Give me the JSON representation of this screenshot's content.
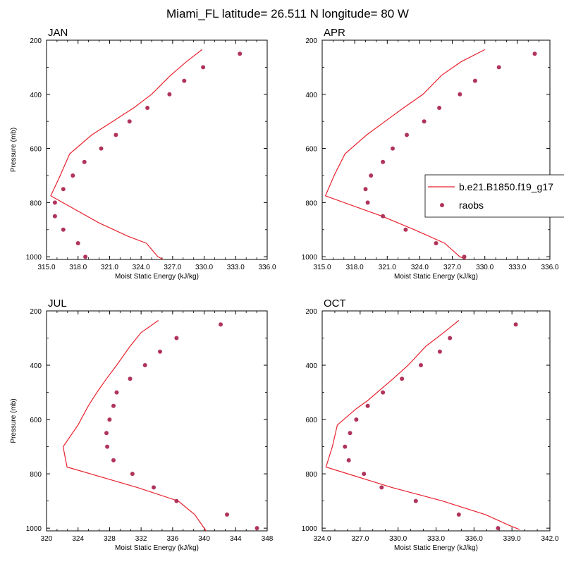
{
  "title": "Miami_FL  latitude= 26.511 N longitude= 80 W",
  "legend": {
    "model_label": "b.e21.B1850.f19_g17",
    "obs_label": "raobs"
  },
  "colors": {
    "model_line": "#e8212e",
    "obs_marker": "#b0345a",
    "axis": "#000000",
    "background": "#ffffff"
  },
  "chart_data": [
    {
      "type": "line+scatter",
      "panel": "JAN",
      "xlabel": "Moist Static Energy (kJ/kg)",
      "ylabel": "Pressure (mb)",
      "xlim": [
        315,
        336
      ],
      "ylim": [
        1010,
        200
      ],
      "xticks": [
        315,
        318,
        321,
        324,
        327,
        330,
        333,
        336
      ],
      "xtick_labels": [
        "315.0",
        "318.0",
        "321.0",
        "324.0",
        "327.0",
        "330.0",
        "333.0",
        "336.0"
      ],
      "yticks": [
        200,
        400,
        600,
        800,
        1000
      ],
      "ytick_labels": [
        "200",
        "400",
        "600",
        "800",
        "1000"
      ],
      "model": {
        "pressure": [
          235,
          280,
          330,
          400,
          450,
          500,
          550,
          620,
          700,
          775,
          875,
          925,
          950,
          1000,
          1020
        ],
        "mse": [
          329.8,
          328.3,
          326.8,
          325.0,
          323.3,
          321.3,
          319.3,
          317.2,
          316.3,
          315.4,
          320.0,
          322.8,
          324.5,
          325.6,
          326.6
        ]
      },
      "obs": {
        "pressure": [
          250,
          300,
          350,
          400,
          450,
          500,
          550,
          600,
          650,
          700,
          750,
          800,
          850,
          900,
          950,
          1000
        ],
        "mse": [
          333.4,
          329.9,
          328.1,
          326.7,
          324.6,
          322.9,
          321.6,
          320.2,
          318.6,
          317.5,
          316.6,
          315.8,
          315.8,
          316.6,
          318.0,
          318.7
        ]
      }
    },
    {
      "type": "line+scatter",
      "panel": "APR",
      "xlabel": "Moist Static Energy (kJ/kg)",
      "ylabel": "",
      "xlim": [
        315,
        336
      ],
      "ylim": [
        1010,
        200
      ],
      "xticks": [
        315,
        318,
        321,
        324,
        327,
        330,
        333,
        336
      ],
      "xtick_labels": [
        "315.0",
        "318.0",
        "321.0",
        "324.0",
        "327.0",
        "330.0",
        "333.0",
        "336.0"
      ],
      "yticks": [
        200,
        400,
        600,
        800,
        1000
      ],
      "ytick_labels": [
        "200",
        "400",
        "600",
        "800",
        "1000"
      ],
      "model": {
        "pressure": [
          235,
          280,
          330,
          400,
          450,
          500,
          550,
          620,
          700,
          775,
          850,
          900,
          950,
          1000,
          1010
        ],
        "mse": [
          330.0,
          327.8,
          326.0,
          324.3,
          322.5,
          320.8,
          319.1,
          317.1,
          316.1,
          315.3,
          320.5,
          323.5,
          326.3,
          327.7,
          328.3
        ]
      },
      "obs": {
        "pressure": [
          250,
          300,
          350,
          400,
          450,
          500,
          550,
          600,
          650,
          700,
          750,
          800,
          850,
          900,
          950,
          1000
        ],
        "mse": [
          334.6,
          331.3,
          329.1,
          327.7,
          325.8,
          324.4,
          322.8,
          321.5,
          320.6,
          319.5,
          319.0,
          319.2,
          320.6,
          322.7,
          325.5,
          328.1
        ]
      }
    },
    {
      "type": "line+scatter",
      "panel": "JUL",
      "xlabel": "Moist Static Energy (kJ/kg)",
      "ylabel": "Pressure (mb)",
      "xlim": [
        320,
        348
      ],
      "ylim": [
        1010,
        200
      ],
      "xticks": [
        320,
        324,
        328,
        332,
        336,
        340,
        344,
        348
      ],
      "xtick_labels": [
        "320",
        "324",
        "328",
        "332",
        "336",
        "340",
        "344",
        "348"
      ],
      "yticks": [
        200,
        400,
        600,
        800,
        1000
      ],
      "ytick_labels": [
        "200",
        "400",
        "600",
        "800",
        "1000"
      ],
      "model": {
        "pressure": [
          235,
          280,
          330,
          400,
          450,
          500,
          550,
          620,
          700,
          775,
          850,
          900,
          950,
          1000,
          1020
        ],
        "mse": [
          334.2,
          332.0,
          330.6,
          328.9,
          327.6,
          326.4,
          325.3,
          324.0,
          322.1,
          322.6,
          331.5,
          336.7,
          338.8,
          340.0,
          340.5
        ]
      },
      "obs": {
        "pressure": [
          250,
          300,
          350,
          400,
          450,
          500,
          550,
          600,
          650,
          700,
          750,
          800,
          850,
          900,
          950,
          1000
        ],
        "mse": [
          342.1,
          336.5,
          334.4,
          332.5,
          330.6,
          328.9,
          328.5,
          328.0,
          327.6,
          327.7,
          328.5,
          330.9,
          333.6,
          336.5,
          342.9,
          346.7
        ]
      }
    },
    {
      "type": "line+scatter",
      "panel": "OCT",
      "xlabel": "Moist Static Energy (kJ/kg)",
      "ylabel": "",
      "xlim": [
        324,
        342
      ],
      "ylim": [
        1010,
        200
      ],
      "xticks": [
        324,
        327,
        330,
        333,
        336,
        339,
        342
      ],
      "xtick_labels": [
        "324.0",
        "327.0",
        "330.0",
        "333.0",
        "336.0",
        "339.0",
        "342.0"
      ],
      "yticks": [
        200,
        400,
        600,
        800,
        1000
      ],
      "ytick_labels": [
        "200",
        "400",
        "600",
        "800",
        "1000"
      ],
      "model": {
        "pressure": [
          235,
          280,
          330,
          400,
          450,
          530,
          560,
          620,
          700,
          775,
          850,
          900,
          950,
          990,
          1005
        ],
        "mse": [
          334.8,
          333.6,
          332.2,
          330.8,
          329.6,
          327.6,
          326.7,
          325.2,
          324.8,
          324.3,
          329.5,
          333.5,
          336.9,
          338.8,
          339.6
        ]
      },
      "obs": {
        "pressure": [
          250,
          300,
          350,
          400,
          450,
          500,
          550,
          600,
          650,
          700,
          750,
          800,
          850,
          900,
          950,
          1000
        ],
        "mse": [
          339.3,
          334.1,
          333.3,
          331.8,
          330.3,
          328.8,
          327.6,
          326.7,
          326.2,
          325.8,
          326.1,
          327.3,
          328.7,
          331.4,
          334.8,
          337.9
        ]
      }
    }
  ]
}
